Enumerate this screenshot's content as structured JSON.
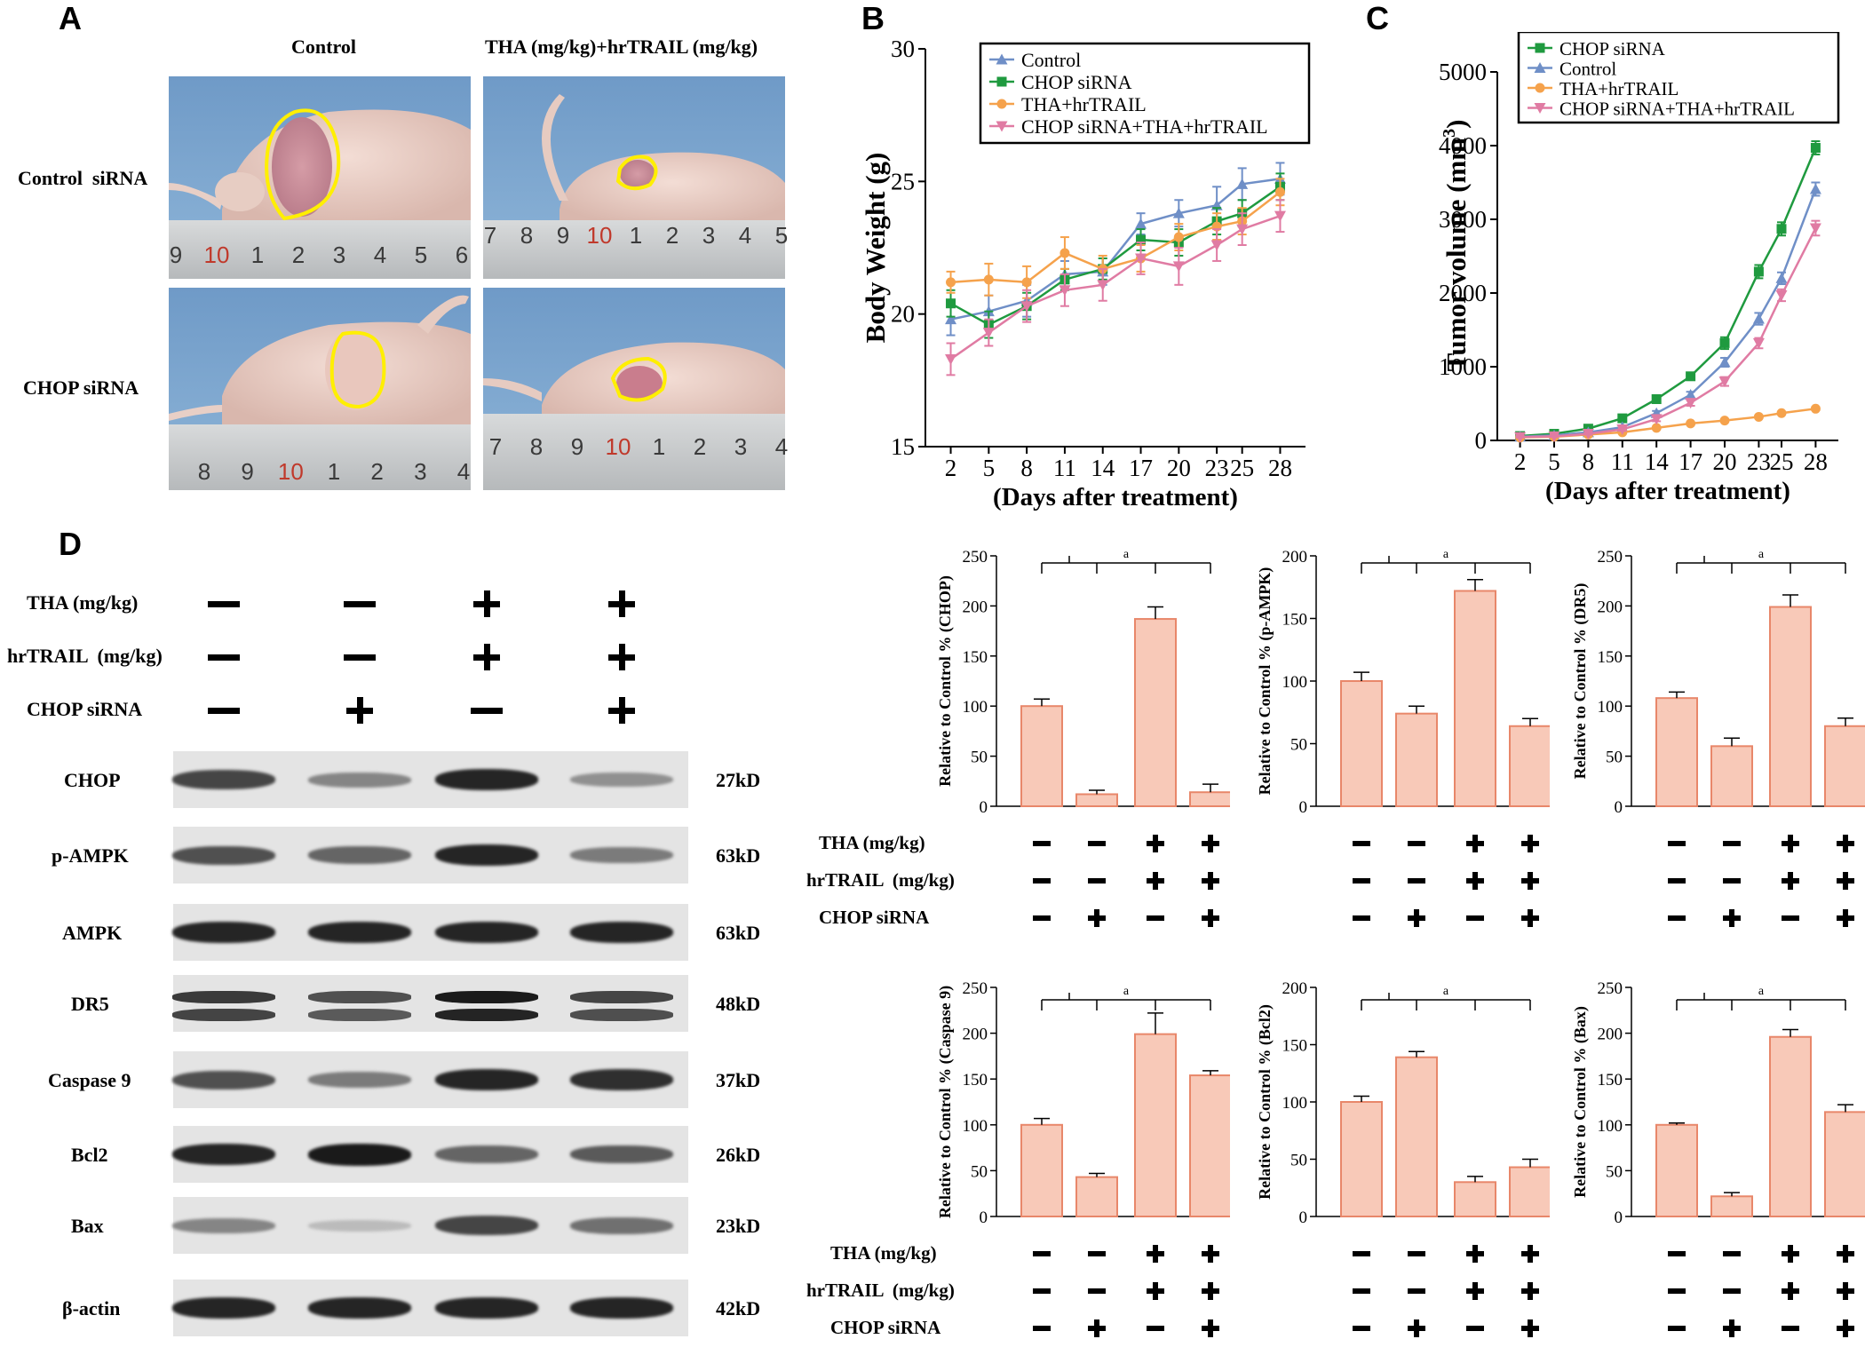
{
  "panels": {
    "A": "A",
    "B": "B",
    "C": "C",
    "D": "D"
  },
  "panel_a": {
    "col_headers": [
      "Control",
      "THA (mg/kg)+hrTRAIL  (mg/kg)"
    ],
    "row_headers": [
      "Control  siRNA",
      "CHOP siRNA"
    ],
    "ruler_ticks": {
      "r1c1": [
        "9",
        "10",
        "1",
        "2",
        "3",
        "4",
        "5",
        "6"
      ],
      "r1c2": [
        "7",
        "8",
        "9",
        "10",
        "1",
        "2",
        "3",
        "4",
        "5"
      ],
      "r2c1": [
        "8",
        "9",
        "10",
        "1",
        "2",
        "3",
        "4"
      ],
      "r2c2": [
        "7",
        "8",
        "9",
        "10",
        "1",
        "2",
        "3",
        "4"
      ]
    }
  },
  "western": {
    "treatments": [
      {
        "label": "THA (mg/kg)",
        "signs": [
          "-",
          "-",
          "+",
          "+"
        ]
      },
      {
        "label": "hrTRAIL  (mg/kg)",
        "signs": [
          "-",
          "-",
          "+",
          "+"
        ]
      },
      {
        "label": "CHOP siRNA",
        "signs": [
          "-",
          "+",
          "-",
          "+"
        ]
      }
    ],
    "bands": [
      {
        "protein": "CHOP",
        "kd": "27kD",
        "intensity": [
          0.75,
          0.45,
          0.9,
          0.4
        ]
      },
      {
        "protein": "p-AMPK",
        "kd": "63kD",
        "intensity": [
          0.7,
          0.6,
          0.9,
          0.5
        ]
      },
      {
        "protein": "AMPK",
        "kd": "63kD",
        "intensity": [
          0.9,
          0.9,
          0.9,
          0.9
        ]
      },
      {
        "protein": "DR5",
        "kd": "48kD",
        "intensity": [
          0.8,
          0.7,
          0.95,
          0.75
        ]
      },
      {
        "protein": "Caspase 9",
        "kd": "37kD",
        "intensity": [
          0.7,
          0.5,
          0.9,
          0.85
        ]
      },
      {
        "protein": "Bcl2",
        "kd": "26kD",
        "intensity": [
          0.9,
          0.95,
          0.6,
          0.65
        ]
      },
      {
        "protein": "Bax",
        "kd": "23kD",
        "intensity": [
          0.45,
          0.2,
          0.75,
          0.55
        ]
      },
      {
        "protein": "β-actin",
        "kd": "42kD",
        "intensity": [
          0.9,
          0.9,
          0.9,
          0.9
        ]
      }
    ]
  },
  "colors": {
    "control": "#6f8fc7",
    "chop_sirna": "#1f9a3f",
    "tha_hrtrail": "#f5a24c",
    "combo": "#e07ba3",
    "bar_fill": "#f8c9b8",
    "bar_stroke": "#e8876a"
  },
  "chart_data": [
    {
      "id": "B",
      "type": "line",
      "title": "",
      "xlabel": "(Days after treatment)",
      "ylabel": "Body Weight (g)",
      "x": [
        2,
        5,
        8,
        11,
        14,
        17,
        20,
        23,
        25,
        28
      ],
      "ylim": [
        15,
        30
      ],
      "yticks": [
        15,
        20,
        25,
        30
      ],
      "legend": "top",
      "series": [
        {
          "name": "Control",
          "color": "#6f8fc7",
          "marker": "triangle",
          "values": [
            19.8,
            20.1,
            20.5,
            21.5,
            21.6,
            23.4,
            23.8,
            24.1,
            24.9,
            25.1
          ],
          "err": [
            0.6,
            0.6,
            0.6,
            0.5,
            0.5,
            0.4,
            0.5,
            0.7,
            0.6,
            0.6
          ]
        },
        {
          "name": "CHOP siRNA",
          "color": "#1f9a3f",
          "marker": "square",
          "values": [
            20.4,
            19.6,
            20.3,
            21.3,
            21.7,
            22.8,
            22.7,
            23.5,
            23.8,
            24.8
          ],
          "err": [
            0.5,
            0.5,
            0.5,
            0.4,
            0.4,
            0.4,
            0.5,
            0.5,
            0.5,
            0.5
          ]
        },
        {
          "name": "THA+hrTRAIL",
          "color": "#f5a24c",
          "marker": "circle",
          "values": [
            21.2,
            21.3,
            21.2,
            22.3,
            21.7,
            22.1,
            22.9,
            23.3,
            23.5,
            24.6
          ],
          "err": [
            0.4,
            0.6,
            0.6,
            0.6,
            0.5,
            0.5,
            0.5,
            0.5,
            0.5,
            0.5
          ]
        },
        {
          "name": "CHOP siRNA+THA+hrTRAIL",
          "color": "#e07ba3",
          "marker": "triangle-down",
          "values": [
            18.3,
            19.3,
            20.3,
            20.9,
            21.1,
            22.1,
            21.8,
            22.6,
            23.2,
            23.7
          ],
          "err": [
            0.6,
            0.5,
            0.6,
            0.6,
            0.6,
            0.6,
            0.7,
            0.6,
            0.6,
            0.6
          ]
        }
      ]
    },
    {
      "id": "C",
      "type": "line",
      "title": "",
      "xlabel": "(Days after treatment)",
      "ylabel": "Tumor volume (mm3)",
      "x": [
        2,
        5,
        8,
        11,
        14,
        17,
        20,
        23,
        25,
        28
      ],
      "ylim": [
        0,
        5000
      ],
      "yticks": [
        0,
        1000,
        2000,
        3000,
        4000,
        5000
      ],
      "legend": "top",
      "series": [
        {
          "name": "CHOP siRNA",
          "color": "#1f9a3f",
          "marker": "square",
          "values": [
            60,
            90,
            160,
            300,
            560,
            870,
            1320,
            2290,
            2870,
            3970
          ],
          "err": [
            10,
            15,
            20,
            30,
            40,
            50,
            80,
            90,
            90,
            90
          ]
        },
        {
          "name": "Control",
          "color": "#6f8fc7",
          "marker": "triangle",
          "values": [
            50,
            70,
            110,
            180,
            370,
            620,
            1060,
            1650,
            2200,
            3410
          ],
          "err": [
            8,
            10,
            15,
            25,
            30,
            40,
            60,
            80,
            80,
            90
          ]
        },
        {
          "name": "THA+hrTRAIL",
          "color": "#f5a24c",
          "marker": "circle",
          "values": [
            40,
            50,
            80,
            110,
            170,
            230,
            270,
            320,
            370,
            430
          ],
          "err": [
            5,
            5,
            10,
            10,
            10,
            10,
            15,
            15,
            15,
            20
          ]
        },
        {
          "name": "CHOP siRNA+THA+hrTRAIL",
          "color": "#e07ba3",
          "marker": "triangle-down",
          "values": [
            45,
            55,
            90,
            150,
            290,
            510,
            800,
            1320,
            1970,
            2880
          ],
          "err": [
            6,
            8,
            12,
            20,
            30,
            40,
            60,
            70,
            80,
            100
          ]
        }
      ]
    },
    {
      "id": "D1",
      "type": "bar",
      "ylabel": "Relative to Control % (CHOP)",
      "ylim": [
        0,
        250
      ],
      "yticks": [
        0,
        50,
        100,
        150,
        200,
        250
      ],
      "values": [
        100,
        12,
        187,
        14
      ],
      "err": [
        7,
        4,
        12,
        8
      ],
      "sig": "a"
    },
    {
      "id": "D2",
      "type": "bar",
      "ylabel": "Relative to Control % (p-AMPK)",
      "ylim": [
        0,
        200
      ],
      "yticks": [
        0,
        50,
        100,
        150,
        200
      ],
      "values": [
        100,
        74,
        172,
        64
      ],
      "err": [
        7,
        6,
        9,
        6
      ],
      "sig": "a"
    },
    {
      "id": "D3",
      "type": "bar",
      "ylabel": "Relative to Control % (DR5)",
      "ylim": [
        0,
        250
      ],
      "yticks": [
        0,
        50,
        100,
        150,
        200,
        250
      ],
      "values": [
        108,
        60,
        199,
        80
      ],
      "err": [
        6,
        8,
        12,
        8
      ],
      "sig": "a"
    },
    {
      "id": "D4",
      "type": "bar",
      "ylabel": "Relative to Control % (Caspase 9)",
      "ylim": [
        0,
        250
      ],
      "yticks": [
        0,
        50,
        100,
        150,
        200,
        250
      ],
      "values": [
        100,
        43,
        199,
        154
      ],
      "err": [
        7,
        4,
        23,
        5
      ],
      "sig": "a"
    },
    {
      "id": "D5",
      "type": "bar",
      "ylabel": "Relative to Control % (Bcl2)",
      "ylim": [
        0,
        200
      ],
      "yticks": [
        0,
        50,
        100,
        150,
        200
      ],
      "values": [
        100,
        139,
        30,
        43
      ],
      "err": [
        5,
        5,
        5,
        7
      ],
      "sig": "a"
    },
    {
      "id": "D6",
      "type": "bar",
      "ylabel": "Relative to Control % (Bax)",
      "ylim": [
        0,
        250
      ],
      "yticks": [
        0,
        50,
        100,
        150,
        200,
        250
      ],
      "values": [
        100,
        22,
        196,
        114
      ],
      "err": [
        2,
        4,
        8,
        8
      ],
      "sig": "a"
    }
  ],
  "bar_treatments": [
    {
      "label": "THA (mg/kg)",
      "signs": [
        "-",
        "-",
        "+",
        "+"
      ]
    },
    {
      "label": "hrTRAIL  (mg/kg)",
      "signs": [
        "-",
        "-",
        "+",
        "+"
      ]
    },
    {
      "label": "CHOP siRNA",
      "signs": [
        "-",
        "+",
        "-",
        "+"
      ]
    }
  ]
}
